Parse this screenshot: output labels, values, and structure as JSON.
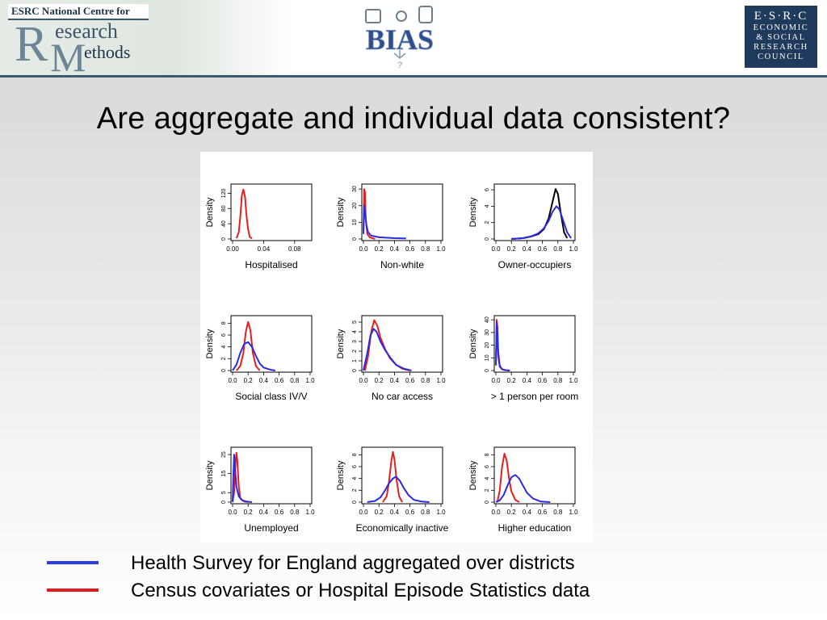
{
  "header": {
    "ncrm": {
      "top": "ESRC National Centre for",
      "big_R": "R",
      "big_M": "M",
      "esearch": "esearch",
      "ethods": "ethods"
    },
    "bias": {
      "text": "BIAS",
      "question": "?"
    },
    "esrc": {
      "line1": "E·S·R·C",
      "line2": "ECONOMIC",
      "line3": "& SOCIAL",
      "line4": "RESEARCH",
      "line5": "COUNCIL"
    }
  },
  "title": "Are aggregate and individual data consistent?",
  "colors": {
    "blue": "#2a2ae6",
    "red": "#e61e1e",
    "black": "#000000"
  },
  "legend": [
    {
      "text": "Health Survey for England aggregated over districts",
      "color": "#2a3ee0"
    },
    {
      "text": "Census covariates or Hospital Episode Statistics data",
      "color": "#e21a1a"
    }
  ],
  "chart_data": [
    {
      "type": "line",
      "title": "Hospitalised",
      "xlabel": "Hospitalised",
      "ylabel": "Density",
      "xlim": [
        0,
        0.1
      ],
      "ylim": [
        0,
        140
      ],
      "xticks": [
        0.0,
        0.04,
        0.08
      ],
      "xtick_labels": [
        "0.00",
        "0.04",
        "0.08"
      ],
      "yticks": [
        0,
        40,
        80,
        120
      ],
      "ytick_labels": [
        "0",
        "40",
        "80",
        "120"
      ],
      "series": [
        {
          "color": "red",
          "x": [
            0.005,
            0.008,
            0.01,
            0.012,
            0.014,
            0.016,
            0.018,
            0.02,
            0.022,
            0.025
          ],
          "y": [
            2,
            18,
            60,
            115,
            130,
            110,
            60,
            25,
            6,
            1
          ]
        }
      ]
    },
    {
      "type": "line",
      "title": "Non-white",
      "xlabel": "Non-white",
      "ylabel": "Density",
      "xlim": [
        0,
        1.0
      ],
      "ylim": [
        0,
        32
      ],
      "xticks": [
        0.0,
        0.2,
        0.4,
        0.6,
        0.8,
        1.0
      ],
      "xtick_labels": [
        "0.0",
        "0.2",
        "0.4",
        "0.6",
        "0.8",
        "1.0"
      ],
      "yticks": [
        0,
        10,
        20,
        30
      ],
      "ytick_labels": [
        "0",
        "10",
        "20",
        "30"
      ],
      "series": [
        {
          "color": "red",
          "x": [
            0.0,
            0.01,
            0.02,
            0.03,
            0.05,
            0.08,
            0.15
          ],
          "y": [
            5,
            30,
            28,
            12,
            3,
            1,
            0
          ]
        },
        {
          "color": "blue",
          "x": [
            0.0,
            0.01,
            0.02,
            0.04,
            0.06,
            0.1,
            0.2,
            0.4,
            0.55
          ],
          "y": [
            3,
            20,
            16,
            8,
            4,
            2,
            1,
            0.5,
            0.3
          ]
        }
      ]
    },
    {
      "type": "line",
      "title": "Owner-occupiers",
      "xlabel": "Owner-occupiers",
      "ylabel": "Density",
      "xlim": [
        0,
        1.0
      ],
      "ylim": [
        0,
        6.5
      ],
      "xticks": [
        0.0,
        0.2,
        0.4,
        0.6,
        0.8,
        1.0
      ],
      "xtick_labels": [
        "0.0",
        "0.2",
        "0.4",
        "0.6",
        "0.8",
        "1.0"
      ],
      "yticks": [
        0,
        2,
        4,
        6
      ],
      "ytick_labels": [
        "0",
        "2",
        "4",
        "6"
      ],
      "series": [
        {
          "color": "black",
          "x": [
            0.2,
            0.35,
            0.45,
            0.55,
            0.62,
            0.68,
            0.73,
            0.77,
            0.8,
            0.84,
            0.88,
            0.92
          ],
          "y": [
            0,
            0.1,
            0.3,
            0.6,
            1.2,
            2.5,
            4.5,
            6.1,
            5.5,
            3.0,
            0.8,
            0.1
          ]
        },
        {
          "color": "blue",
          "x": [
            0.2,
            0.35,
            0.45,
            0.55,
            0.62,
            0.68,
            0.73,
            0.78,
            0.82,
            0.87,
            0.92,
            0.97
          ],
          "y": [
            0,
            0.1,
            0.3,
            0.7,
            1.3,
            2.2,
            3.3,
            4.0,
            3.6,
            2.2,
            0.8,
            0.1
          ]
        }
      ]
    },
    {
      "type": "line",
      "title": "Social class IV/V",
      "xlabel": "Social class IV/V",
      "ylabel": "Density",
      "xlim": [
        0,
        1.0
      ],
      "ylim": [
        0,
        9
      ],
      "xticks": [
        0.0,
        0.2,
        0.4,
        0.6,
        0.8,
        1.0
      ],
      "xtick_labels": [
        "0.0",
        "0.2",
        "0.4",
        "0.6",
        "0.8",
        "1.0"
      ],
      "yticks": [
        0,
        2,
        4,
        6,
        8
      ],
      "ytick_labels": [
        "0",
        "2",
        "4",
        "6",
        "8"
      ],
      "series": [
        {
          "color": "red",
          "x": [
            0.05,
            0.1,
            0.14,
            0.17,
            0.2,
            0.23,
            0.26,
            0.3,
            0.35
          ],
          "y": [
            0,
            0.8,
            3.0,
            6.5,
            8.2,
            6.8,
            3.0,
            0.8,
            0
          ]
        },
        {
          "color": "blue",
          "x": [
            0.0,
            0.05,
            0.1,
            0.15,
            0.2,
            0.25,
            0.3,
            0.35,
            0.4,
            0.5,
            0.55
          ],
          "y": [
            0,
            1.0,
            3.0,
            4.5,
            4.8,
            4.0,
            2.5,
            1.2,
            0.5,
            0.1,
            0
          ]
        }
      ]
    },
    {
      "type": "line",
      "title": "No car access",
      "xlabel": "No car access",
      "ylabel": "Density",
      "xlim": [
        0,
        1.0
      ],
      "ylim": [
        0,
        5.5
      ],
      "xticks": [
        0.0,
        0.2,
        0.4,
        0.6,
        0.8,
        1.0
      ],
      "xtick_labels": [
        "0.0",
        "0.2",
        "0.4",
        "0.6",
        "0.8",
        "1.0"
      ],
      "yticks": [
        0,
        1,
        2,
        3,
        4,
        5
      ],
      "ytick_labels": [
        "0",
        "1",
        "2",
        "3",
        "4",
        "5"
      ],
      "series": [
        {
          "color": "red",
          "x": [
            0.02,
            0.06,
            0.1,
            0.14,
            0.18,
            0.22,
            0.28,
            0.34,
            0.42,
            0.5,
            0.6
          ],
          "y": [
            0,
            1.5,
            4.0,
            5.2,
            4.6,
            3.4,
            2.2,
            1.3,
            0.6,
            0.2,
            0
          ]
        },
        {
          "color": "blue",
          "x": [
            0.0,
            0.05,
            0.09,
            0.13,
            0.17,
            0.22,
            0.28,
            0.35,
            0.42,
            0.52,
            0.62
          ],
          "y": [
            0,
            1.8,
            3.6,
            4.3,
            4.0,
            3.0,
            2.1,
            1.3,
            0.6,
            0.2,
            0
          ]
        }
      ]
    },
    {
      "type": "line",
      "title": "> 1 person per room",
      "xlabel": "> 1 person per room",
      "ylabel": "Density",
      "xlim": [
        0,
        1.0
      ],
      "ylim": [
        0,
        42
      ],
      "xticks": [
        0.0,
        0.2,
        0.4,
        0.6,
        0.8,
        1.0
      ],
      "xtick_labels": [
        "0.0",
        "0.2",
        "0.4",
        "0.6",
        "0.8",
        "1.0"
      ],
      "yticks": [
        0,
        10,
        20,
        30,
        40
      ],
      "ytick_labels": [
        "0",
        "10",
        "20",
        "30",
        "40"
      ],
      "series": [
        {
          "color": "red",
          "x": [
            0.0,
            0.01,
            0.02,
            0.03,
            0.05,
            0.08,
            0.12,
            0.18
          ],
          "y": [
            5,
            40,
            35,
            15,
            4,
            1,
            0.3,
            0
          ]
        },
        {
          "color": "blue",
          "x": [
            0.0,
            0.01,
            0.02,
            0.03,
            0.05,
            0.08,
            0.12,
            0.18
          ],
          "y": [
            4,
            38,
            30,
            12,
            3,
            1,
            0.3,
            0
          ]
        }
      ]
    },
    {
      "type": "line",
      "title": "Unemployed",
      "xlabel": "Unemployed",
      "ylabel": "Density",
      "xlim": [
        0,
        1.0
      ],
      "ylim": [
        0,
        28
      ],
      "xticks": [
        0.0,
        0.2,
        0.4,
        0.6,
        0.8,
        1.0
      ],
      "xtick_labels": [
        "0.0",
        "0.2",
        "0.4",
        "0.6",
        "0.8",
        "1.0"
      ],
      "yticks": [
        0,
        5,
        15,
        25
      ],
      "ytick_labels": [
        "0",
        "5",
        "15",
        "25"
      ],
      "series": [
        {
          "color": "red",
          "x": [
            0.0,
            0.02,
            0.04,
            0.05,
            0.06,
            0.08,
            0.1,
            0.15,
            0.2
          ],
          "y": [
            0,
            5,
            22,
            26,
            22,
            8,
            2,
            0.3,
            0
          ]
        },
        {
          "color": "blue",
          "x": [
            0.0,
            0.01,
            0.02,
            0.03,
            0.05,
            0.08,
            0.12,
            0.18,
            0.25
          ],
          "y": [
            0,
            15,
            25,
            18,
            8,
            3,
            1,
            0.3,
            0
          ]
        }
      ]
    },
    {
      "type": "line",
      "title": "Economically inactive",
      "xlabel": "Economically inactive",
      "ylabel": "Density",
      "xlim": [
        0,
        1.0
      ],
      "ylim": [
        0,
        9
      ],
      "xticks": [
        0.0,
        0.2,
        0.4,
        0.6,
        0.8,
        1.0
      ],
      "xtick_labels": [
        "0.0",
        "0.2",
        "0.4",
        "0.6",
        "0.8",
        "1.0"
      ],
      "yticks": [
        0,
        2,
        4,
        6,
        8
      ],
      "ytick_labels": [
        "0",
        "2",
        "4",
        "6",
        "8"
      ],
      "series": [
        {
          "color": "red",
          "x": [
            0.25,
            0.3,
            0.33,
            0.36,
            0.38,
            0.4,
            0.43,
            0.46,
            0.5
          ],
          "y": [
            0,
            1.0,
            3.5,
            7.0,
            8.5,
            7.2,
            3.5,
            1.0,
            0
          ]
        },
        {
          "color": "blue",
          "x": [
            0.05,
            0.15,
            0.22,
            0.28,
            0.33,
            0.38,
            0.42,
            0.47,
            0.52,
            0.58,
            0.65,
            0.75,
            0.85
          ],
          "y": [
            0,
            0.2,
            0.8,
            2.0,
            3.2,
            4.0,
            4.3,
            3.6,
            2.4,
            1.2,
            0.4,
            0.1,
            0
          ]
        }
      ]
    },
    {
      "type": "line",
      "title": "Higher education",
      "xlabel": "Higher education",
      "ylabel": "Density",
      "xlim": [
        0,
        1.0
      ],
      "ylim": [
        0,
        9
      ],
      "xticks": [
        0.0,
        0.2,
        0.4,
        0.6,
        0.8,
        1.0
      ],
      "xtick_labels": [
        "0.0",
        "0.2",
        "0.4",
        "0.6",
        "0.8",
        "1.0"
      ],
      "yticks": [
        0,
        2,
        4,
        6,
        8
      ],
      "ytick_labels": [
        "0",
        "2",
        "4",
        "6",
        "8"
      ],
      "series": [
        {
          "color": "red",
          "x": [
            0.02,
            0.05,
            0.08,
            0.11,
            0.14,
            0.17,
            0.2,
            0.25,
            0.3
          ],
          "y": [
            0,
            2.0,
            6.0,
            8.2,
            7.0,
            4.0,
            1.8,
            0.4,
            0
          ]
        },
        {
          "color": "blue",
          "x": [
            0.0,
            0.05,
            0.1,
            0.15,
            0.2,
            0.25,
            0.3,
            0.35,
            0.4,
            0.48,
            0.58,
            0.7
          ],
          "y": [
            0,
            0.3,
            1.2,
            2.8,
            4.2,
            4.6,
            4.0,
            2.8,
            1.6,
            0.6,
            0.1,
            0
          ]
        }
      ]
    }
  ]
}
